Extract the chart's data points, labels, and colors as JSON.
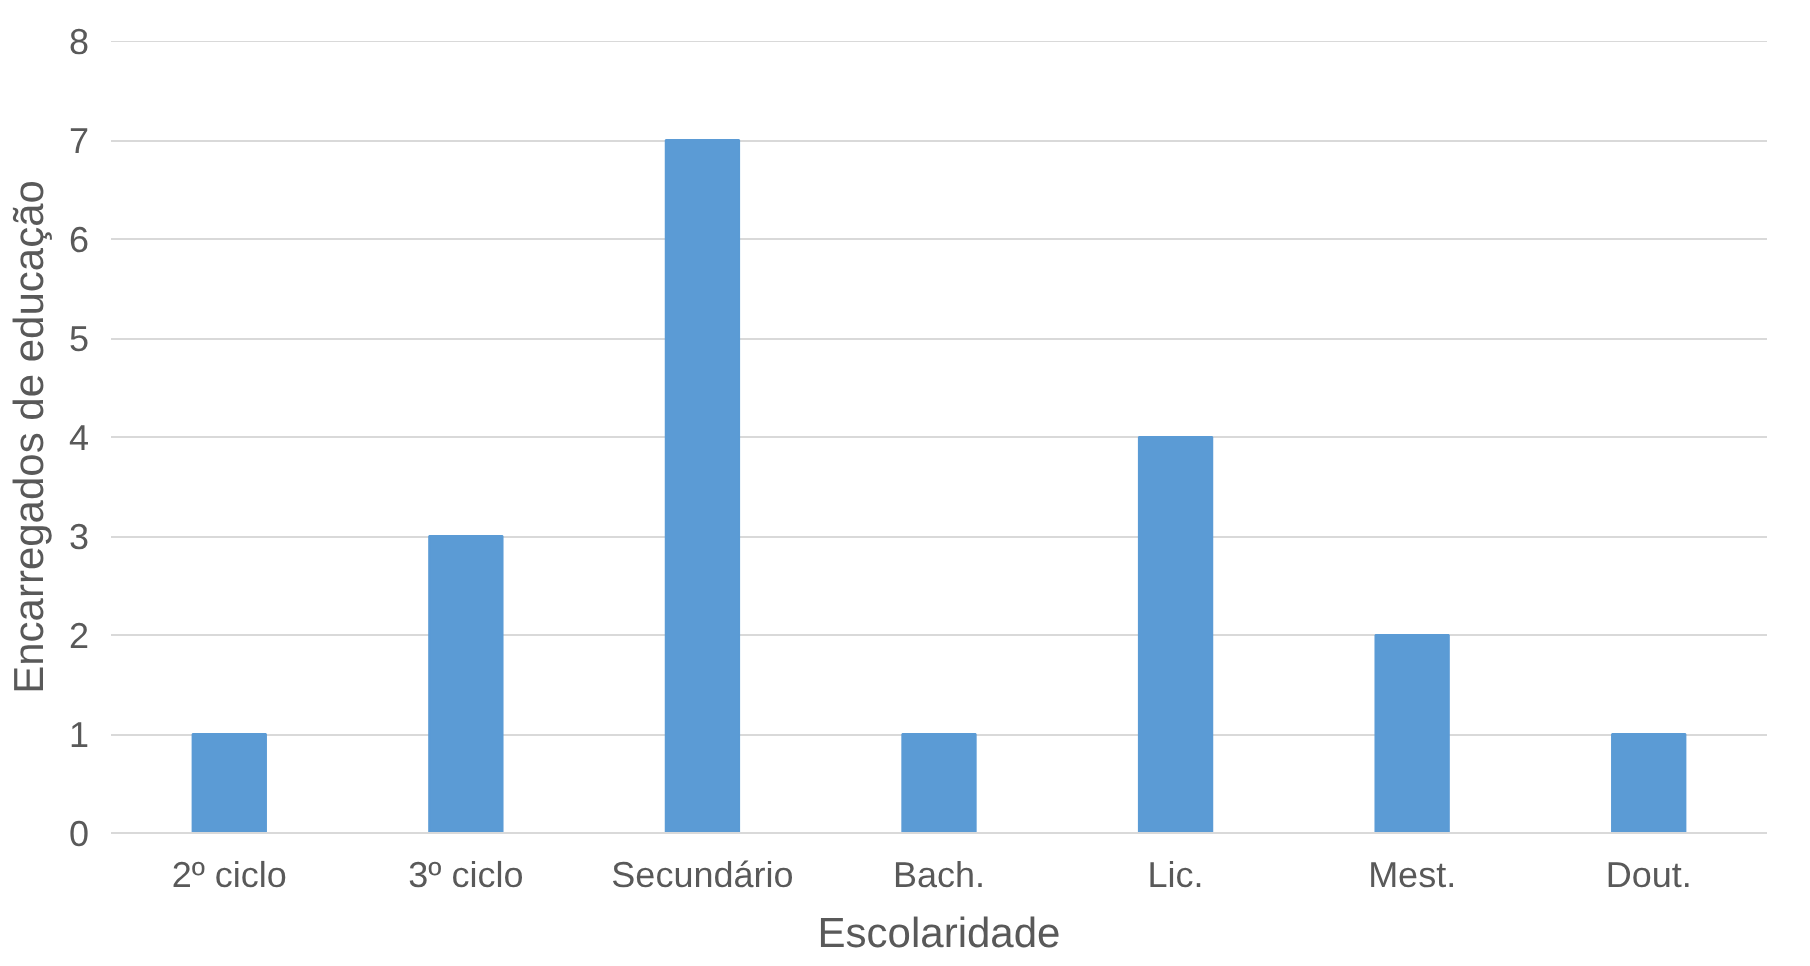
{
  "chart_data": {
    "type": "bar",
    "xlabel": "Escolaridade",
    "ylabel": "Encarregados de educação",
    "categories": [
      "2º ciclo",
      "3º ciclo",
      "Secundário",
      "Bach.",
      "Lic.",
      "Mest.",
      "Dout."
    ],
    "values": [
      1,
      3,
      7,
      1,
      4,
      2,
      1
    ],
    "color": "#5b9bd5",
    "ylim": [
      0,
      8
    ],
    "yticks": [
      0,
      1,
      2,
      3,
      4,
      5,
      6,
      7,
      8
    ],
    "grid": "y"
  }
}
